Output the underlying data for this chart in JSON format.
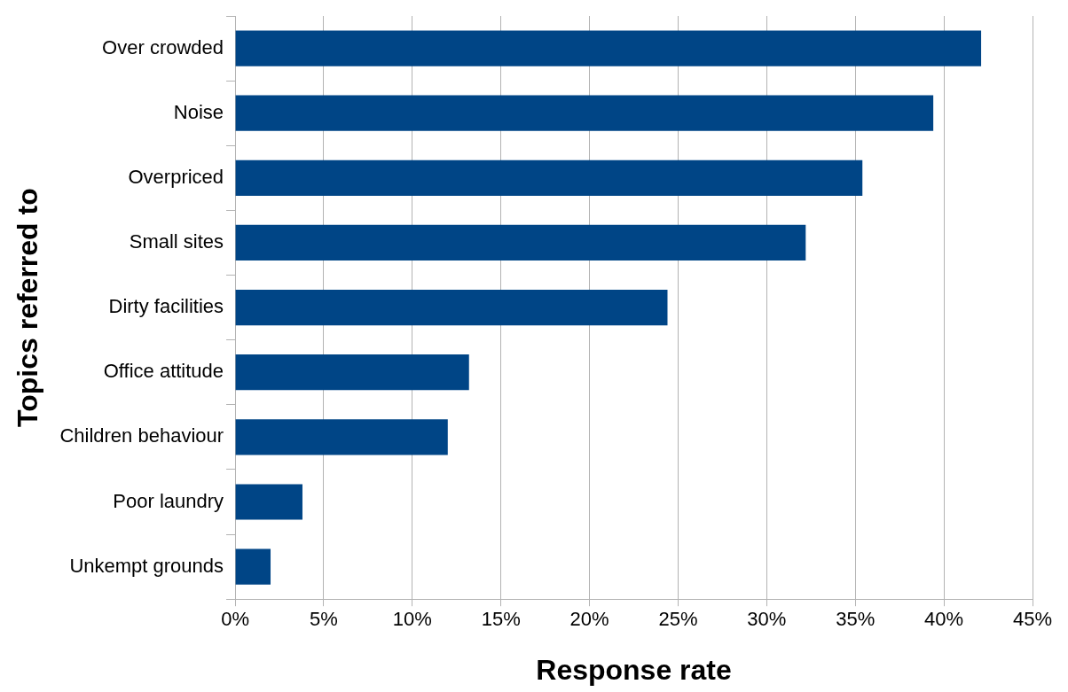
{
  "chart_data": {
    "type": "bar",
    "orientation": "horizontal",
    "xlabel": "Response rate",
    "ylabel": "Topics referred to",
    "categories": [
      "Over crowded",
      "Noise",
      "Overpriced",
      "Small sites",
      "Dirty facilities",
      "Office attitude",
      "Children behaviour",
      "Poor laundry",
      "Unkempt grounds"
    ],
    "values": [
      42.1,
      39.4,
      35.4,
      32.2,
      24.4,
      13.2,
      12.0,
      3.8,
      2.0
    ],
    "color": "#004586",
    "xlim": [
      0,
      45
    ],
    "xticks": [
      {
        "value": 0,
        "label": "0%"
      },
      {
        "value": 5,
        "label": "5%"
      },
      {
        "value": 10,
        "label": "10%"
      },
      {
        "value": 15,
        "label": "15%"
      },
      {
        "value": 20,
        "label": "20%"
      },
      {
        "value": 25,
        "label": "25%"
      },
      {
        "value": 30,
        "label": "30%"
      },
      {
        "value": 35,
        "label": "35%"
      },
      {
        "value": 40,
        "label": "40%"
      },
      {
        "value": 45,
        "label": "45%"
      }
    ],
    "grid": "x",
    "legend": false
  }
}
